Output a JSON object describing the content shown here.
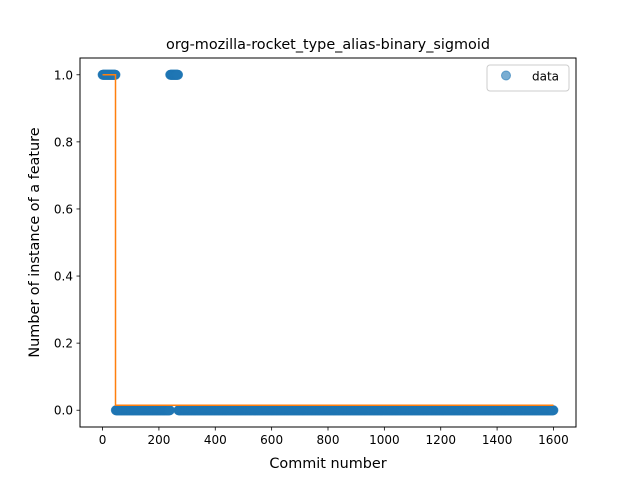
{
  "chart_data": {
    "type": "scatter",
    "title": "org-mozilla-rocket_type_alias-binary_sigmoid",
    "xlabel": "Commit number",
    "ylabel": "Number of instance of a feature",
    "xlim": [
      -80,
      1680
    ],
    "ylim": [
      -0.05,
      1.05
    ],
    "xticks": [
      0,
      200,
      400,
      600,
      800,
      1000,
      1200,
      1400,
      1600
    ],
    "xtick_labels": [
      "0",
      "200",
      "400",
      "600",
      "800",
      "1000",
      "1200",
      "1400",
      "1600"
    ],
    "yticks": [
      0.0,
      0.2,
      0.4,
      0.6,
      0.8,
      1.0
    ],
    "ytick_labels": [
      "0.0",
      "0.2",
      "0.4",
      "0.6",
      "0.8",
      "1.0"
    ],
    "grid": false,
    "legend": {
      "placement": "top-right",
      "entries": [
        "data"
      ]
    },
    "series": [
      {
        "name": "data",
        "kind": "scatter",
        "color": "#1f77b4",
        "segments": [
          {
            "x_start": 0,
            "x_end": 46,
            "y": 1
          },
          {
            "x_start": 47,
            "x_end": 239,
            "y": 0
          },
          {
            "x_start": 240,
            "x_end": 268,
            "y": 1
          },
          {
            "x_start": 269,
            "x_end": 1600,
            "y": 0
          }
        ]
      },
      {
        "kind": "line",
        "color": "#ff7f0e",
        "step": [
          {
            "x_start": 0,
            "x_end": 46,
            "y": 1
          },
          {
            "x_start": 46,
            "x_end": 1600,
            "y": 0.015
          }
        ]
      }
    ]
  }
}
